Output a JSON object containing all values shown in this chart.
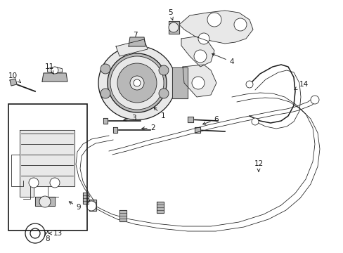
{
  "bg_color": "#ffffff",
  "line_color": "#1a1a1a",
  "fig_width": 4.89,
  "fig_height": 3.6,
  "dpi": 100,
  "label_fontsize": 7.5,
  "lw_main": 0.9,
  "lw_thin": 0.55,
  "lw_hose": 1.1,
  "gray_fill": "#d0d0d0",
  "light_gray": "#e8e8e8",
  "mid_gray": "#b8b8b8"
}
